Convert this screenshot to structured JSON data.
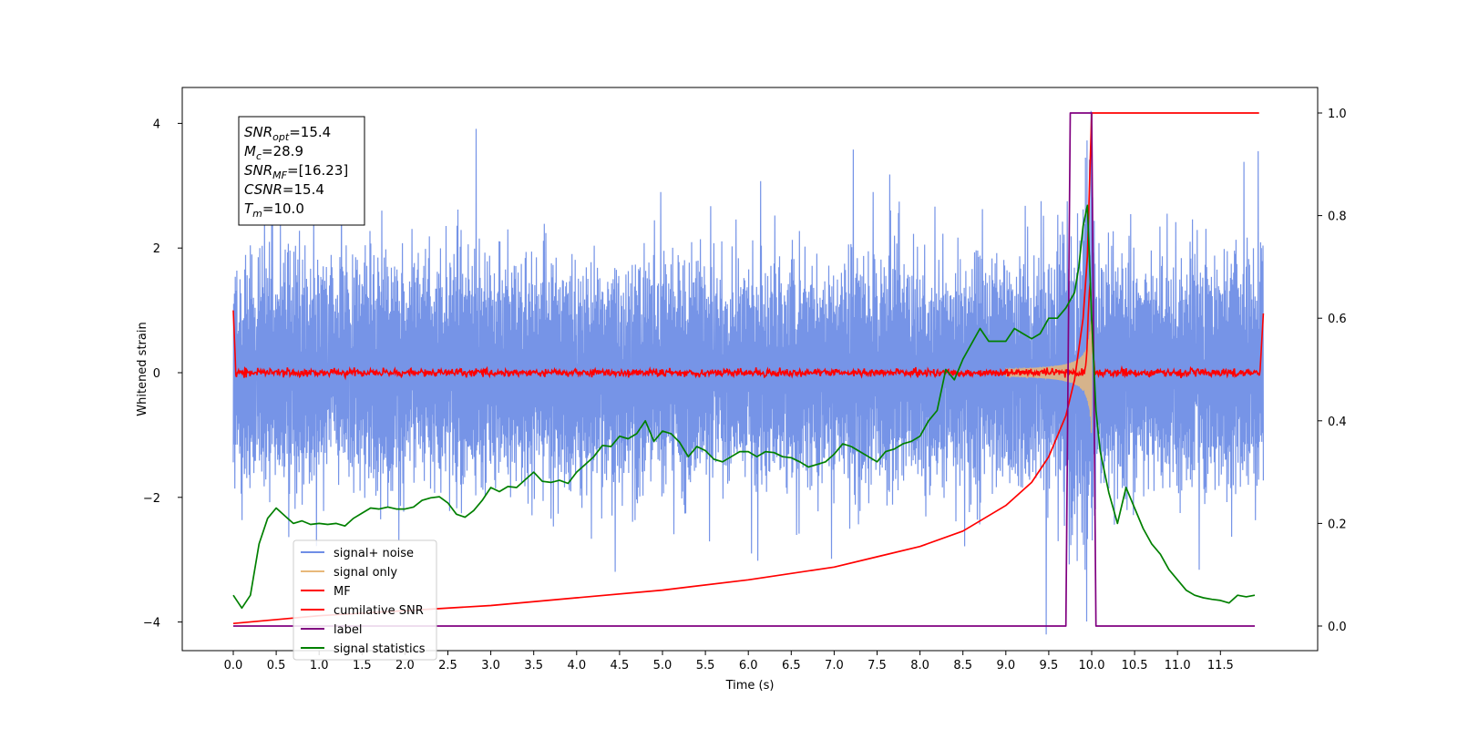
{
  "chart_data": {
    "type": "line",
    "xlabel": "Time (s)",
    "ylabel": "Whitened strain",
    "xlim": [
      -0.6,
      12.5
    ],
    "ylim": [
      -4.6,
      4.6
    ],
    "y2lim": [
      -0.05,
      1.05
    ],
    "grid": false,
    "legend_position": "lower-left",
    "x_ticks": [
      "0.0",
      "0.5",
      "1.0",
      "1.5",
      "2.0",
      "2.5",
      "3.0",
      "3.5",
      "4.0",
      "4.5",
      "5.0",
      "5.5",
      "6.0",
      "6.5",
      "7.0",
      "7.5",
      "8.0",
      "8.5",
      "9.0",
      "9.5",
      "10.0",
      "10.5",
      "11.0",
      "11.5"
    ],
    "y_ticks": [
      "4",
      "2",
      "0",
      "−2",
      "−4"
    ],
    "y2_ticks": [
      "1.0",
      "0.8",
      "0.6",
      "0.4",
      "0.2",
      "0.0"
    ],
    "annotation": [
      {
        "main": "SNR",
        "sub": "opt",
        "rest": "=15.4"
      },
      {
        "main": "M",
        "sub": "c",
        "rest": "=28.9"
      },
      {
        "main": "SNR",
        "sub": "MF",
        "rest": "=[16.23]"
      },
      {
        "main": "CSNR",
        "sub": "",
        "rest": "=15.4"
      },
      {
        "main": "T",
        "sub": "m",
        "rest": "=10.0"
      }
    ],
    "series": [
      {
        "name": "signal+ noise",
        "color": "#6f8ee6",
        "axis": "left",
        "description_kind": "noise"
      },
      {
        "name": "signal only",
        "color": "#e8b87a",
        "axis": "left",
        "description_kind": "chirp"
      },
      {
        "name": "MF",
        "color": "#ff0000",
        "axis": "left",
        "description_kind": "filter"
      },
      {
        "name": "cumilative SNR",
        "color": "#ff0000",
        "axis": "right",
        "x": [
          0.0,
          1.0,
          2.0,
          3.0,
          4.0,
          5.0,
          6.0,
          7.0,
          7.5,
          8.0,
          8.5,
          9.0,
          9.3,
          9.5,
          9.7,
          9.8,
          9.9,
          9.95,
          10.0,
          11.0,
          11.5,
          11.95
        ],
        "values": [
          0.005,
          0.02,
          0.03,
          0.04,
          0.055,
          0.07,
          0.09,
          0.115,
          0.135,
          0.155,
          0.185,
          0.235,
          0.28,
          0.33,
          0.41,
          0.48,
          0.6,
          0.72,
          1.0,
          1.0,
          1.0,
          1.0
        ]
      },
      {
        "name": "label",
        "color": "#800080",
        "axis": "right",
        "x": [
          0.0,
          9.7,
          9.75,
          10.0,
          10.05,
          11.9
        ],
        "values": [
          0.0,
          0.0,
          1.0,
          1.0,
          0.0,
          0.0
        ]
      },
      {
        "name": "signal statistics",
        "color": "#008000",
        "axis": "right",
        "x": [
          0.0,
          0.1,
          0.2,
          0.3,
          0.4,
          0.5,
          0.6,
          0.7,
          0.8,
          0.9,
          1.0,
          1.1,
          1.2,
          1.3,
          1.4,
          1.5,
          1.6,
          1.7,
          1.8,
          1.9,
          2.0,
          2.1,
          2.2,
          2.3,
          2.4,
          2.5,
          2.6,
          2.7,
          2.8,
          2.9,
          3.0,
          3.1,
          3.2,
          3.3,
          3.4,
          3.5,
          3.6,
          3.7,
          3.8,
          3.9,
          4.0,
          4.1,
          4.2,
          4.3,
          4.4,
          4.5,
          4.6,
          4.7,
          4.8,
          4.9,
          5.0,
          5.1,
          5.2,
          5.3,
          5.4,
          5.5,
          5.6,
          5.7,
          5.8,
          5.9,
          6.0,
          6.1,
          6.2,
          6.3,
          6.4,
          6.5,
          6.6,
          6.7,
          6.8,
          6.9,
          7.0,
          7.1,
          7.2,
          7.3,
          7.4,
          7.5,
          7.6,
          7.7,
          7.8,
          7.9,
          8.0,
          8.1,
          8.2,
          8.3,
          8.4,
          8.5,
          8.6,
          8.7,
          8.8,
          8.9,
          9.0,
          9.1,
          9.2,
          9.3,
          9.4,
          9.5,
          9.6,
          9.7,
          9.8,
          9.85,
          9.9,
          9.95,
          10.0,
          10.05,
          10.1,
          10.2,
          10.3,
          10.4,
          10.5,
          10.6,
          10.7,
          10.8,
          10.9,
          11.0,
          11.1,
          11.2,
          11.3,
          11.4,
          11.5,
          11.6,
          11.7,
          11.8,
          11.9
        ],
        "values": [
          0.06,
          0.035,
          0.06,
          0.16,
          0.21,
          0.23,
          0.215,
          0.2,
          0.205,
          0.198,
          0.2,
          0.198,
          0.2,
          0.195,
          0.21,
          0.22,
          0.23,
          0.228,
          0.232,
          0.228,
          0.228,
          0.232,
          0.245,
          0.25,
          0.252,
          0.24,
          0.218,
          0.212,
          0.225,
          0.245,
          0.27,
          0.262,
          0.272,
          0.27,
          0.285,
          0.3,
          0.282,
          0.28,
          0.284,
          0.278,
          0.3,
          0.315,
          0.33,
          0.352,
          0.35,
          0.37,
          0.365,
          0.375,
          0.4,
          0.36,
          0.38,
          0.375,
          0.358,
          0.33,
          0.35,
          0.342,
          0.325,
          0.32,
          0.33,
          0.34,
          0.34,
          0.33,
          0.34,
          0.338,
          0.33,
          0.328,
          0.32,
          0.31,
          0.315,
          0.32,
          0.335,
          0.355,
          0.35,
          0.34,
          0.33,
          0.32,
          0.34,
          0.345,
          0.355,
          0.36,
          0.37,
          0.4,
          0.42,
          0.5,
          0.48,
          0.52,
          0.55,
          0.58,
          0.555,
          0.555,
          0.555,
          0.58,
          0.57,
          0.56,
          0.57,
          0.6,
          0.6,
          0.62,
          0.65,
          0.7,
          0.78,
          0.82,
          0.6,
          0.42,
          0.34,
          0.26,
          0.2,
          0.27,
          0.23,
          0.19,
          0.16,
          0.14,
          0.11,
          0.09,
          0.07,
          0.06,
          0.055,
          0.052,
          0.05,
          0.045,
          0.06,
          0.057,
          0.06
        ]
      }
    ]
  }
}
